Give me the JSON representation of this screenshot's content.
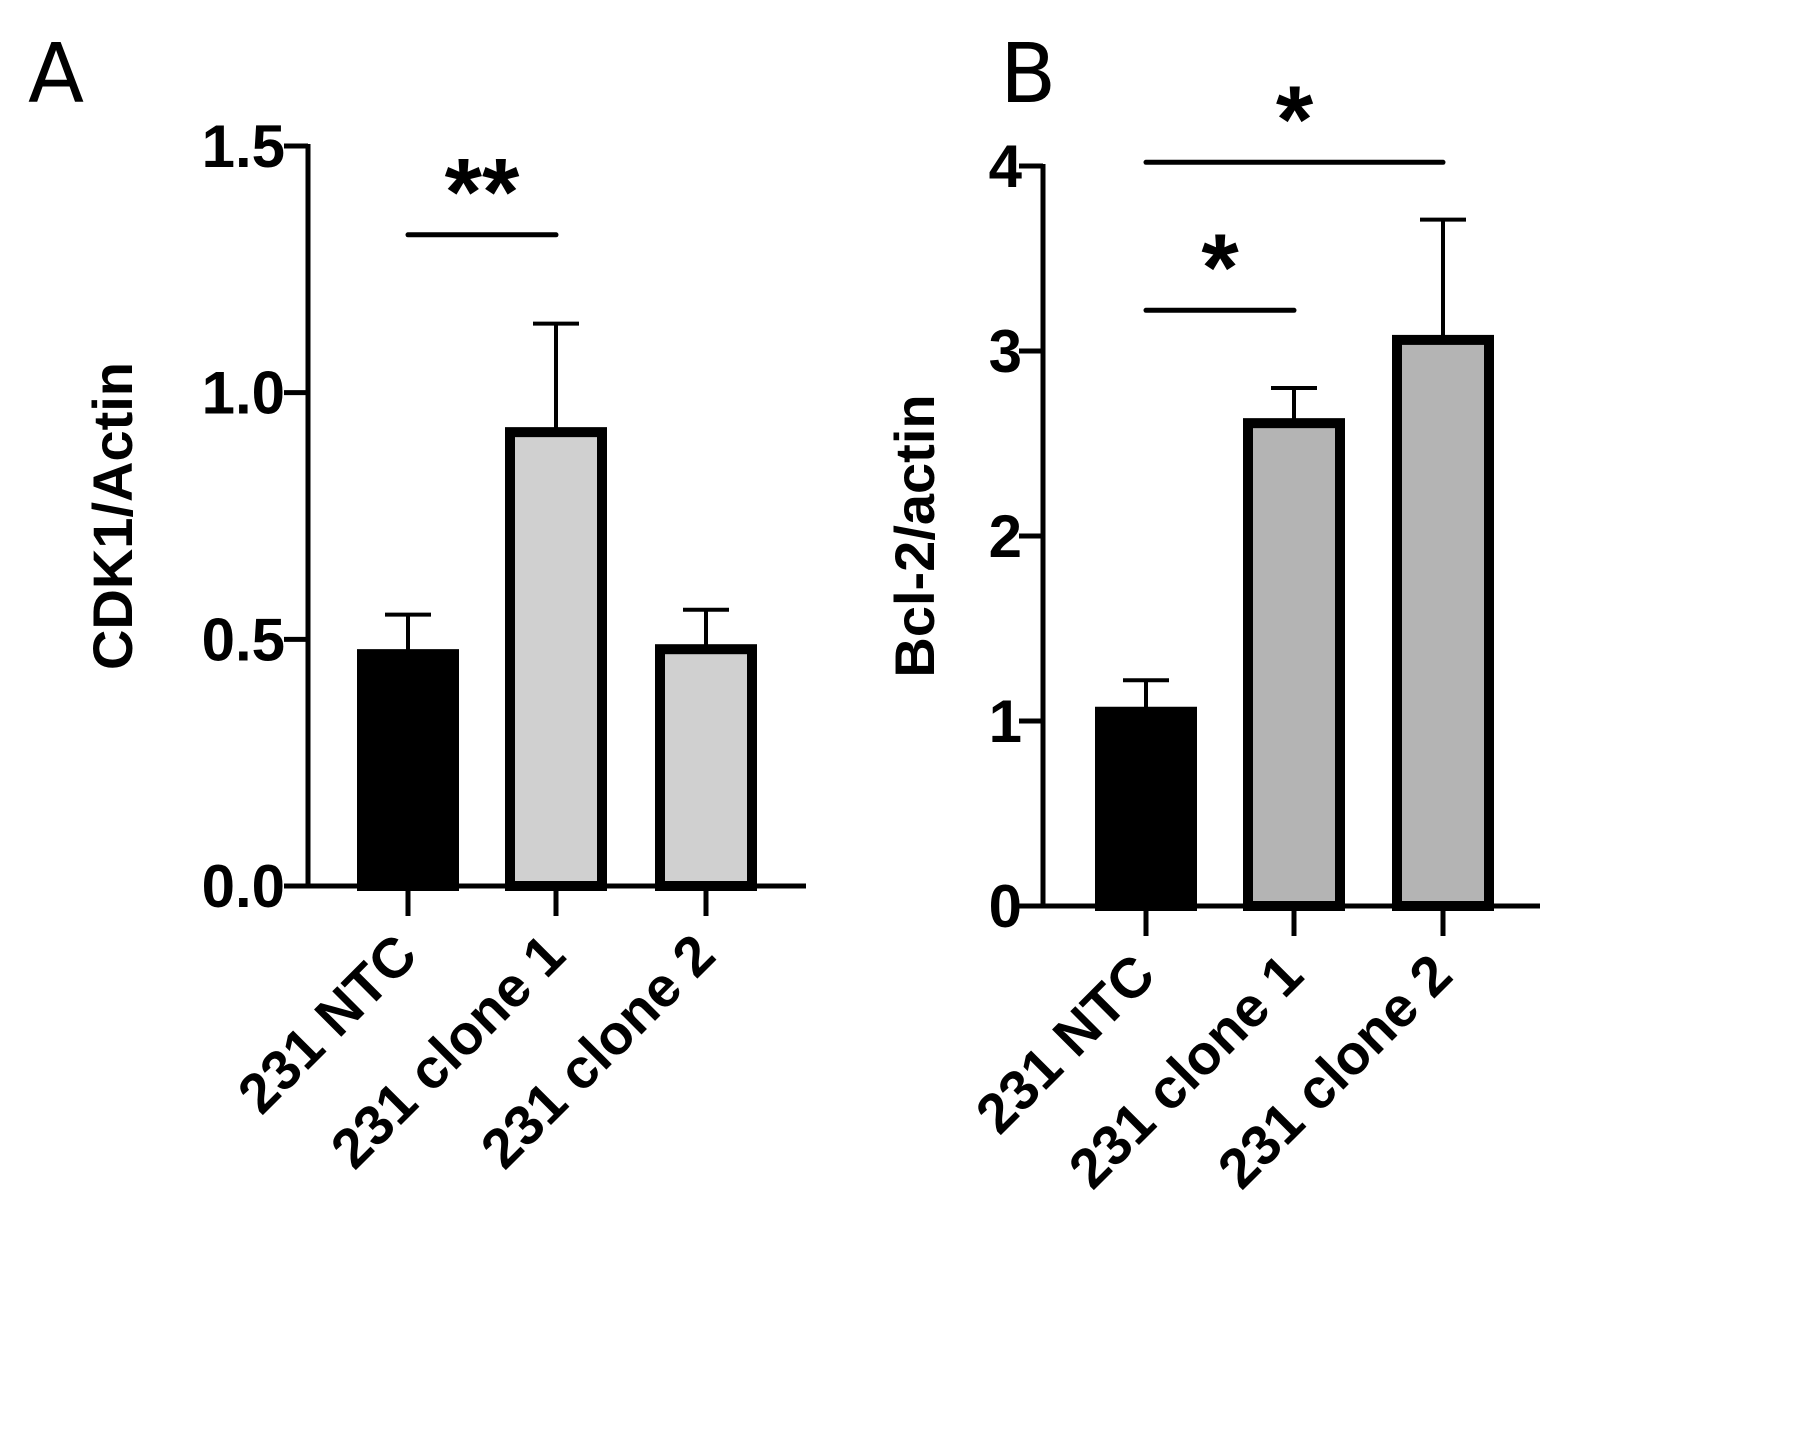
{
  "chart_data": [
    {
      "panel": "A",
      "type": "bar",
      "categories": [
        "231 NTC",
        "231 clone 1",
        "231 clone 2"
      ],
      "values": [
        0.47,
        0.92,
        0.48
      ],
      "errors": [
        0.08,
        0.22,
        0.08
      ],
      "colors": [
        "#000000",
        "#d0d0d0",
        "#d0d0d0"
      ],
      "ylabel": "CDK1/Actin",
      "ylim": [
        0,
        1.5
      ],
      "yticks": [
        0.0,
        0.5,
        1.0,
        1.5
      ],
      "ytick_labels": [
        "0.0",
        "0.5",
        "1.0",
        "1.5"
      ],
      "significance": [
        {
          "from": 0,
          "to": 1,
          "value": 1.32,
          "label": "**"
        }
      ]
    },
    {
      "panel": "B",
      "type": "bar",
      "categories": [
        "231 NTC",
        "231 clone 1",
        "231 clone 2"
      ],
      "values": [
        1.05,
        2.61,
        3.06
      ],
      "errors": [
        0.17,
        0.19,
        0.65
      ],
      "colors": [
        "#000000",
        "#b4b4b4",
        "#b4b4b4"
      ],
      "ylabel": "Bcl-2/actin",
      "ylim": [
        0,
        4
      ],
      "yticks": [
        0,
        1,
        2,
        3,
        4
      ],
      "ytick_labels": [
        "0",
        "1",
        "2",
        "3",
        "4"
      ],
      "significance": [
        {
          "from": 0,
          "to": 1,
          "value": 3.22,
          "label": "*"
        },
        {
          "from": 0,
          "to": 2,
          "value": 4.02,
          "label": "*"
        }
      ]
    }
  ]
}
